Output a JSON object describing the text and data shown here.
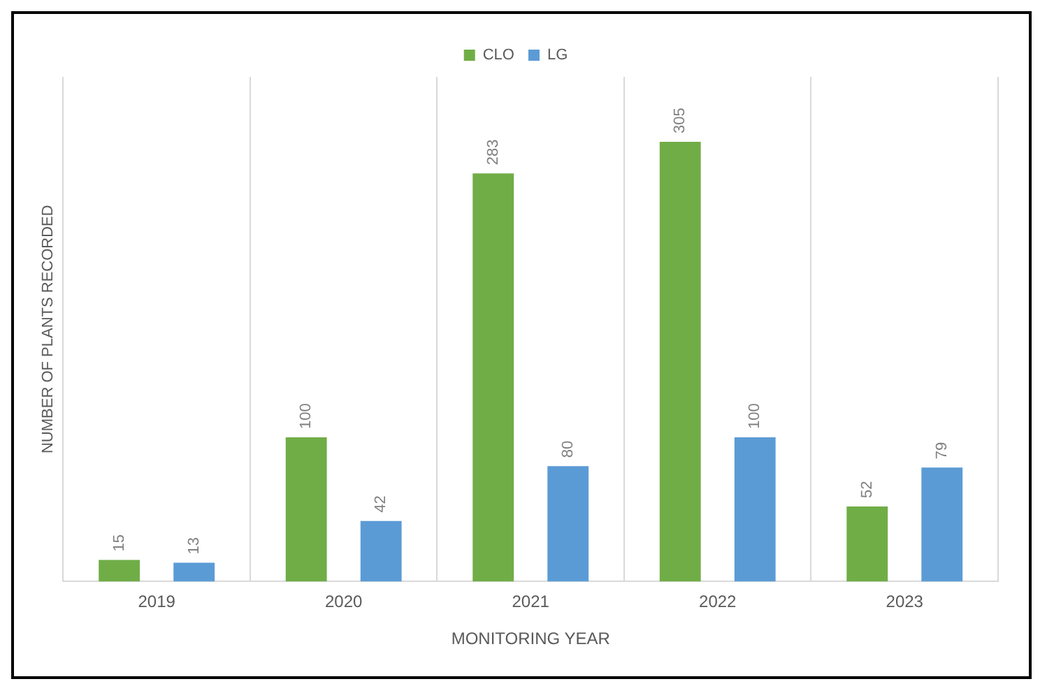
{
  "chart_data": {
    "type": "bar",
    "xlabel": "MONITORING YEAR",
    "ylabel": "NUMBER OF PLANTS RECORDED",
    "categories": [
      "2019",
      "2020",
      "2021",
      "2022",
      "2023"
    ],
    "series": [
      {
        "name": "CLO",
        "color": "#70ad47",
        "values": [
          15,
          100,
          283,
          305,
          52
        ]
      },
      {
        "name": "LG",
        "color": "#5b9bd5",
        "values": [
          13,
          42,
          80,
          100,
          79
        ]
      }
    ],
    "data_labels": true,
    "grid": "x",
    "legend": "top",
    "tick_labels": "x"
  }
}
